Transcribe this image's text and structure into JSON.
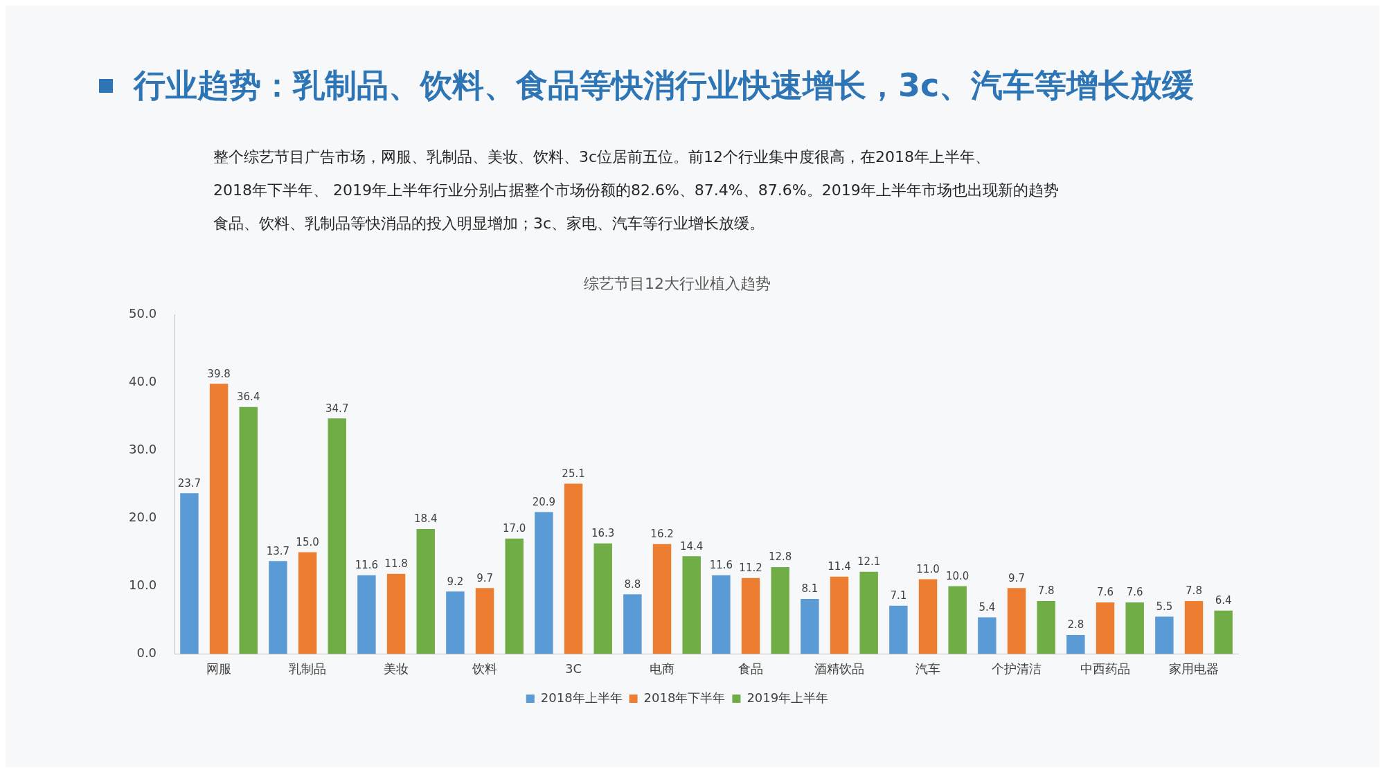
{
  "chart_data": {
    "type": "bar",
    "title": "综艺节目12大行业植入趋势",
    "annotations": [
      "行业趋势：乳制品、饮料、食品等快消行业快速增长，3c、汽车等增长放缓",
      "整个综艺节目广告市场，网服、乳制品、美妆、饮料、3c位居前五位。前12个行业集中度很高，在2018年上半年、",
      "2018年下半年、 2019年上半年行业分别占据整个市场份额的82.6%、87.4%、87.6%。2019年上半年市场也出现新的趋势",
      "食品、饮料、乳制品等快消品的投入明显增加；3c、家电、汽车等行业增长放缓。"
    ],
    "categories": [
      "网服",
      "乳制品",
      "美妆",
      "饮料",
      "3C",
      "电商",
      "食品",
      "酒精饮品",
      "汽车",
      "个护清洁",
      "中西药品",
      "家用电器"
    ],
    "series": [
      {
        "name": "2018年上半年",
        "color": "#5b9bd5",
        "values": [
          23.7,
          13.7,
          11.6,
          9.2,
          20.9,
          8.8,
          11.6,
          8.1,
          7.1,
          5.4,
          2.8,
          5.5
        ],
        "value_labels": [
          "23.7",
          "13.7",
          "11.6",
          "9.2",
          "20.9",
          "8.8",
          "11.6",
          "8.1",
          "7.1",
          "5.4",
          "2.8",
          "5.5"
        ]
      },
      {
        "name": "2018年下半年",
        "color": "#ed7d31",
        "values": [
          39.8,
          15.0,
          11.8,
          9.7,
          25.1,
          16.2,
          11.2,
          11.4,
          11.0,
          9.7,
          7.6,
          7.8
        ],
        "value_labels": [
          "39.8",
          "15.0",
          "11.8",
          "9.7",
          "25.1",
          "16.2",
          "11.2",
          "11.4",
          "11.0",
          "9.7",
          "7.6",
          "7.8"
        ]
      },
      {
        "name": "2019年上半年",
        "color": "#70ad47",
        "values": [
          36.4,
          34.7,
          18.4,
          17.0,
          16.3,
          14.4,
          12.8,
          12.1,
          10.0,
          7.8,
          7.6,
          6.4
        ],
        "value_labels": [
          "36.4",
          "34.7",
          "18.4",
          "17.0",
          "16.3",
          "14.4",
          "12.8",
          "12.1",
          "10.0",
          "7.8",
          "7.6",
          "6.4"
        ]
      }
    ],
    "ylim": [
      0,
      50
    ],
    "yticks": [
      {
        "value": 0,
        "label": "0.0"
      },
      {
        "value": 10,
        "label": "10.0"
      },
      {
        "value": 20,
        "label": "20.0"
      },
      {
        "value": 30,
        "label": "30.0"
      },
      {
        "value": 40,
        "label": "40.0"
      },
      {
        "value": 50,
        "label": "50.0"
      }
    ],
    "grid": false,
    "legend": "bottom"
  }
}
